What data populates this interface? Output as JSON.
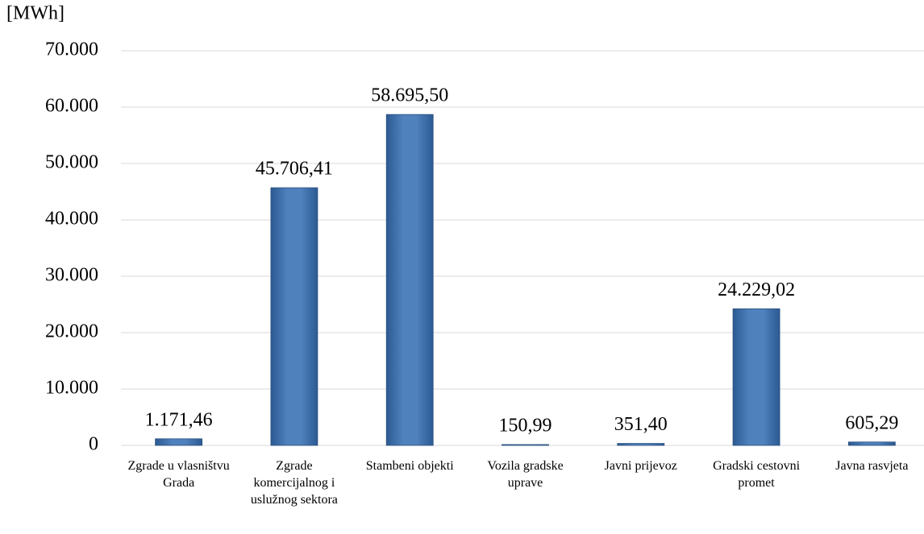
{
  "chart_data": {
    "type": "bar",
    "y_axis_label": "[MWh]",
    "categories": [
      "Zgrade u vlasništvu Grada",
      "Zgrade komercijalnog i uslužnog sektora",
      "Stambeni objekti",
      "Vozila gradske uprave",
      "Javni prijevoz",
      "Gradski cestovni promet",
      "Javna rasvjeta"
    ],
    "values": [
      1171.46,
      45706.41,
      58695.5,
      150.99,
      351.4,
      24229.02,
      605.29
    ],
    "value_labels": [
      "1.171,46",
      "45.706,41",
      "58.695,50",
      "150,99",
      "351,40",
      "24.229,02",
      "605,29"
    ],
    "color": "#4f81bd",
    "ylim": [
      0,
      70000
    ],
    "yticks": [
      0,
      {
        "value": 10000,
        "label": "10.000"
      },
      {
        "value": 20000,
        "label": "20.000"
      },
      {
        "value": 30000,
        "label": "30.000"
      },
      {
        "value": 40000,
        "label": "40.000"
      },
      {
        "value": 50000,
        "label": "50.000"
      },
      {
        "value": 60000,
        "label": "60.000"
      },
      {
        "value": 70000,
        "label": "70.000"
      }
    ],
    "grid": true
  }
}
